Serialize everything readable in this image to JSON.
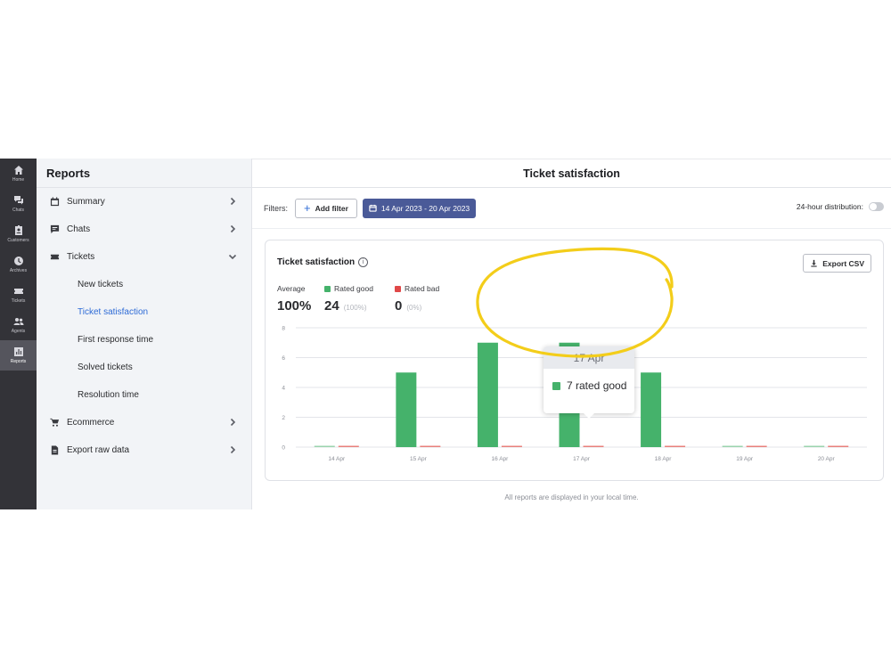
{
  "rail": [
    {
      "label": "Home",
      "icon": "home-icon"
    },
    {
      "label": "Chats",
      "icon": "chat-bubbles-icon"
    },
    {
      "label": "Customers",
      "icon": "contact-card-icon"
    },
    {
      "label": "Archives",
      "icon": "clock-icon"
    },
    {
      "label": "Tickets",
      "icon": "ticket-icon"
    },
    {
      "label": "Agents",
      "icon": "people-icon"
    },
    {
      "label": "Reports",
      "icon": "bar-chart-icon",
      "active": true
    }
  ],
  "sidebar": {
    "title": "Reports",
    "items": [
      {
        "label": "Summary",
        "icon": "calendar-icon",
        "chevron": "right"
      },
      {
        "label": "Chats",
        "icon": "chat-icon",
        "chevron": "right"
      },
      {
        "label": "Tickets",
        "icon": "ticket-icon",
        "chevron": "down"
      }
    ],
    "sub_items": [
      {
        "label": "New tickets"
      },
      {
        "label": "Ticket satisfaction",
        "active": true
      },
      {
        "label": "First response time"
      },
      {
        "label": "Solved tickets"
      },
      {
        "label": "Resolution time"
      }
    ],
    "bottom_items": [
      {
        "label": "Ecommerce",
        "icon": "cart-icon",
        "chevron": "right"
      },
      {
        "label": "Export raw data",
        "icon": "document-icon",
        "chevron": "right"
      }
    ]
  },
  "main": {
    "title": "Ticket satisfaction",
    "filters_label": "Filters:",
    "add_filter": "Add filter",
    "date_range": "14 Apr 2023 - 20 Apr 2023",
    "distribution_label": "24-hour distribution:",
    "distribution_on": false,
    "footnote": "All reports are displayed in your local time."
  },
  "card": {
    "title": "Ticket satisfaction",
    "export_label": "Export CSV",
    "stats": [
      {
        "label": "Average",
        "value": "100%",
        "percent": ""
      },
      {
        "label": "Rated good",
        "value": "24",
        "percent": "(100%)",
        "color": "#45b26b"
      },
      {
        "label": "Rated bad",
        "value": "0",
        "percent": "(0%)",
        "color": "#e04848"
      }
    ]
  },
  "tooltip": {
    "date": "17 Apr",
    "text": "7 rated good"
  },
  "colors": {
    "good": "#45b26b",
    "bad": "#e8807c",
    "highlight": "#f3cd1a"
  },
  "chart_data": {
    "type": "bar",
    "categories": [
      "14 Apr",
      "15 Apr",
      "16 Apr",
      "17 Apr",
      "18 Apr",
      "19 Apr",
      "20 Apr"
    ],
    "series": [
      {
        "name": "Rated good",
        "values": [
          0,
          5,
          7,
          7,
          5,
          0,
          0
        ]
      },
      {
        "name": "Rated bad",
        "values": [
          0,
          0,
          0,
          0,
          0,
          0,
          0
        ]
      }
    ],
    "yticks": [
      0,
      2,
      4,
      6,
      8
    ],
    "ylim": [
      0,
      8
    ],
    "grid": true
  }
}
